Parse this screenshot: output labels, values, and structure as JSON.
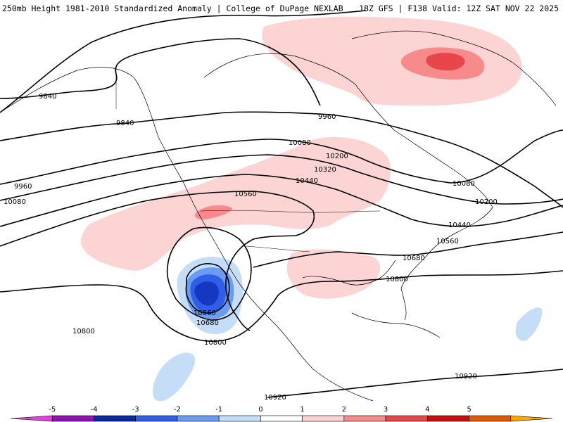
{
  "header": {
    "left": "250mb Height 1981-2010 Standardized Anomaly | College of DuPage NEXLAB",
    "right": "18Z GFS | F138 Valid: 12Z SAT NOV 22 2025"
  },
  "colors": {
    "pos1": "#fcd4d4",
    "pos2": "#f78a8a",
    "pos3": "#e8464a",
    "neg1": "#c6ddf8",
    "neg2": "#6b9cf2",
    "neg3": "#2f5fe8",
    "neg4": "#1438c0"
  },
  "contour_labels": [
    "9840",
    "9840",
    "9960",
    "9960",
    "10080",
    "10080",
    "10080",
    "10200",
    "10200",
    "10320",
    "10440",
    "10440",
    "10560",
    "10560",
    "10560",
    "10680",
    "10680",
    "10800",
    "10800",
    "10800",
    "10920",
    "10920"
  ],
  "colorbar": {
    "ticks": [
      "-5",
      "-4",
      "-3",
      "-2",
      "-1",
      "0",
      "1",
      "2",
      "3",
      "4",
      "5"
    ],
    "colors": [
      "#e040e0",
      "#9010b0",
      "#0a2a9e",
      "#2f5fe8",
      "#6b9cf2",
      "#c6ddf8",
      "#ffffff",
      "#fcd4d4",
      "#f78a8a",
      "#e8464a",
      "#c81010",
      "#e05a00",
      "#ffa800"
    ]
  }
}
